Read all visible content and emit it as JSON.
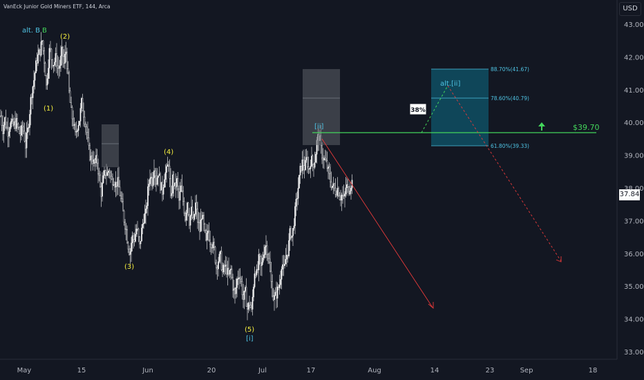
{
  "header": {
    "title": "VanEck Junior Gold Miners ETF, 144, Arca",
    "currency_button": "USD"
  },
  "current_price_label": "37.84",
  "colors": {
    "background": "#131722",
    "candle": "#ffffff",
    "wave_yellow": "#f5ee3f",
    "wave_cyan": "#4fc3e3",
    "target_green": "#43d65b",
    "projection_red": "#e83a3a",
    "target_zone_fill": "#0f4f63",
    "gray_box": "#5d6068"
  },
  "chart_data": {
    "type": "candlestick",
    "x_tick_labels": [
      "May",
      "15",
      "Jun",
      "20",
      "Jul",
      "17",
      "Aug",
      "14",
      "23",
      "Sep",
      "18"
    ],
    "y_ticks": [
      "43.00",
      "42.00",
      "41.00",
      "40.00",
      "39.00",
      "38.00",
      "37.00",
      "36.00",
      "35.00",
      "34.00",
      "33.00"
    ],
    "ylim": [
      32.85,
      43.15
    ],
    "price_path": [
      [
        0,
        40.2
      ],
      [
        3,
        39.8
      ],
      [
        6,
        40.1
      ],
      [
        10,
        39.7
      ],
      [
        14,
        40.0
      ],
      [
        18,
        39.9
      ],
      [
        23,
        40.0
      ],
      [
        28,
        39.6
      ],
      [
        32,
        39.9
      ],
      [
        36,
        39.3
      ],
      [
        40,
        39.9
      ],
      [
        44,
        40.8
      ],
      [
        48,
        41.3
      ],
      [
        52,
        41.9
      ],
      [
        57,
        42.2
      ],
      [
        60,
        42.5
      ],
      [
        64,
        41.7
      ],
      [
        66,
        41.1
      ],
      [
        68,
        41.6
      ],
      [
        71,
        42.3
      ],
      [
        74,
        41.9
      ],
      [
        77,
        41.8
      ],
      [
        80,
        42.0
      ],
      [
        83,
        41.6
      ],
      [
        86,
        41.8
      ],
      [
        89,
        42.2
      ],
      [
        92,
        41.7
      ],
      [
        94,
        42.3
      ],
      [
        96,
        41.8
      ],
      [
        99,
        40.9
      ],
      [
        102,
        40.3
      ],
      [
        105,
        40.0
      ],
      [
        108,
        39.6
      ],
      [
        111,
        39.9
      ],
      [
        114,
        40.1
      ],
      [
        117,
        40.6
      ],
      [
        120,
        40.3
      ],
      [
        124,
        39.8
      ],
      [
        127,
        39.2
      ],
      [
        130,
        38.9
      ],
      [
        133,
        38.9
      ],
      [
        136,
        38.7
      ],
      [
        139,
        38.9
      ],
      [
        142,
        38.4
      ],
      [
        145,
        37.8
      ],
      [
        148,
        38.2
      ],
      [
        151,
        38.5
      ],
      [
        154,
        38.4
      ],
      [
        157,
        38.6
      ],
      [
        160,
        38.2
      ],
      [
        163,
        38.3
      ],
      [
        166,
        38.1
      ],
      [
        169,
        38.2
      ],
      [
        172,
        37.9
      ],
      [
        175,
        37.5
      ],
      [
        178,
        37.1
      ],
      [
        181,
        36.8
      ],
      [
        184,
        36.3
      ],
      [
        187,
        36.0
      ],
      [
        190,
        36.5
      ],
      [
        193,
        36.4
      ],
      [
        197,
        36.8
      ],
      [
        201,
        36.2
      ],
      [
        204,
        36.7
      ],
      [
        207,
        37.1
      ],
      [
        210,
        37.2
      ],
      [
        213,
        37.9
      ],
      [
        216,
        38.4
      ],
      [
        219,
        38.2
      ],
      [
        222,
        38.7
      ],
      [
        225,
        38.2
      ],
      [
        228,
        38.5
      ],
      [
        231,
        38.1
      ],
      [
        234,
        37.9
      ],
      [
        237,
        38.4
      ],
      [
        240,
        38.5
      ],
      [
        243,
        38.8
      ],
      [
        246,
        37.6
      ],
      [
        249,
        38.3
      ],
      [
        252,
        38.0
      ],
      [
        255,
        38.2
      ],
      [
        258,
        37.6
      ],
      [
        261,
        38.0
      ],
      [
        264,
        37.6
      ],
      [
        267,
        37.1
      ],
      [
        270,
        37.6
      ],
      [
        273,
        37.0
      ],
      [
        276,
        37.3
      ],
      [
        279,
        36.9
      ],
      [
        282,
        37.5
      ],
      [
        285,
        37.0
      ],
      [
        288,
        36.7
      ],
      [
        291,
        37.2
      ],
      [
        294,
        36.8
      ],
      [
        297,
        36.3
      ],
      [
        300,
        36.7
      ],
      [
        303,
        36.4
      ],
      [
        306,
        36.3
      ],
      [
        309,
        36.1
      ],
      [
        312,
        35.6
      ],
      [
        315,
        35.8
      ],
      [
        318,
        35.9
      ],
      [
        321,
        35.4
      ],
      [
        324,
        35.6
      ],
      [
        327,
        35.5
      ],
      [
        330,
        35.3
      ],
      [
        333,
        35.5
      ],
      [
        336,
        35.0
      ],
      [
        339,
        34.7
      ],
      [
        342,
        35.2
      ],
      [
        345,
        35.4
      ],
      [
        348,
        35.1
      ],
      [
        351,
        34.6
      ],
      [
        354,
        34.8
      ],
      [
        357,
        34.3
      ],
      [
        360,
        34.5
      ],
      [
        363,
        34.2
      ],
      [
        365,
        34.8
      ],
      [
        368,
        35.6
      ],
      [
        371,
        35.3
      ],
      [
        374,
        35.9
      ],
      [
        377,
        35.5
      ],
      [
        380,
        36.0
      ],
      [
        383,
        36.3
      ],
      [
        386,
        36.1
      ],
      [
        389,
        35.6
      ],
      [
        392,
        35.0
      ],
      [
        395,
        34.6
      ],
      [
        398,
        34.7
      ],
      [
        401,
        34.9
      ],
      [
        404,
        35.1
      ],
      [
        407,
        35.8
      ],
      [
        410,
        35.4
      ],
      [
        413,
        35.9
      ],
      [
        416,
        36.1
      ],
      [
        419,
        36.7
      ],
      [
        422,
        36.5
      ],
      [
        425,
        37.1
      ],
      [
        428,
        37.6
      ],
      [
        431,
        38.1
      ],
      [
        434,
        38.6
      ],
      [
        437,
        38.8
      ],
      [
        440,
        38.6
      ],
      [
        443,
        38.9
      ],
      [
        446,
        38.5
      ],
      [
        449,
        38.9
      ],
      [
        452,
        38.7
      ],
      [
        455,
        38.9
      ],
      [
        458,
        39.5
      ],
      [
        461,
        39.6
      ],
      [
        464,
        39.1
      ],
      [
        467,
        38.9
      ],
      [
        470,
        38.8
      ],
      [
        473,
        38.6
      ],
      [
        476,
        38.3
      ],
      [
        479,
        38.1
      ],
      [
        482,
        38.0
      ],
      [
        485,
        37.9
      ],
      [
        488,
        38.0
      ],
      [
        491,
        37.7
      ],
      [
        494,
        37.8
      ],
      [
        497,
        37.6
      ],
      [
        500,
        38.1
      ],
      [
        503,
        37.9
      ],
      [
        506,
        38.1
      ],
      [
        509,
        38.2
      ]
    ]
  },
  "annotations": {
    "wave_labels": [
      "alt. B",
      "B",
      "(2)",
      "(1)",
      "(4)",
      "(3)",
      "(5)",
      "[i]",
      "[ii]",
      "alt.[ii]"
    ],
    "percent_badge": "38%",
    "target_label": "$39.70",
    "target_price": 39.7,
    "fib_levels": [
      {
        "label": "88.70%(41.67)",
        "price": 41.67
      },
      {
        "label": "78.60%(40.79)",
        "price": 40.79
      },
      {
        "label": "61.80%(39.33)",
        "price": 39.33
      }
    ]
  }
}
